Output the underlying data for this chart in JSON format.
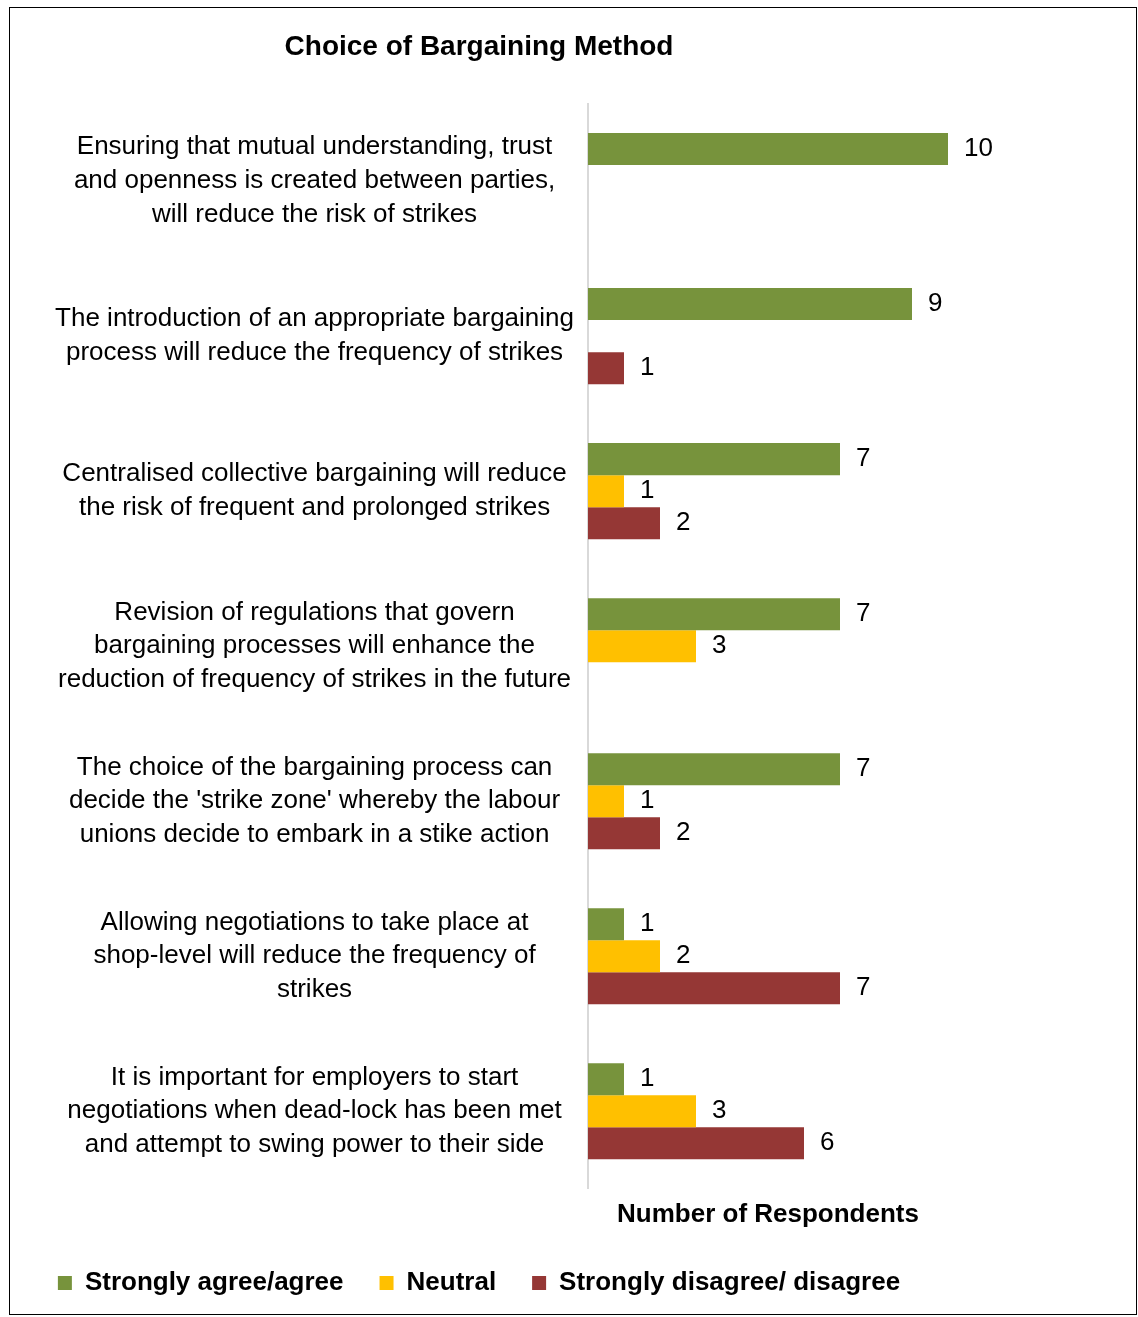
{
  "chart_data": {
    "type": "bar",
    "orientation": "horizontal",
    "title": "Choice of Bargaining Method",
    "xlabel": "Number of Respondents",
    "categories": [
      "Ensuring that mutual understanding, trust and openness is created between parties, will reduce the risk of strikes",
      "The introduction of an appropriate bargaining process will reduce the frequency of strikes",
      "Centralised collective bargaining will reduce the risk of frequent and prolonged strikes",
      "Revision of regulations that govern bargaining processes will enhance the reduction of frequency of strikes in the future",
      "The choice of the bargaining process can decide the 'strike zone' whereby the labour unions decide to embark in a stike action",
      "Allowing negotiations to take place at shop-level will reduce the frequency of strikes",
      "It is important for employers to start negotiations when dead-lock has been met and attempt to swing power to their side"
    ],
    "series": [
      {
        "name": "Strongly agree/agree",
        "color": "#77933c",
        "values": [
          10,
          9,
          7,
          7,
          7,
          1,
          1
        ]
      },
      {
        "name": "Neutral",
        "color": "#ffc000",
        "values": [
          null,
          null,
          1,
          3,
          1,
          2,
          3
        ]
      },
      {
        "name": "Strongly disagree/ disagree",
        "color": "#953735",
        "values": [
          null,
          1,
          2,
          null,
          2,
          7,
          6
        ]
      }
    ],
    "tick_labels": "y",
    "grid": false,
    "legend": "bottom",
    "data_labels": true
  }
}
